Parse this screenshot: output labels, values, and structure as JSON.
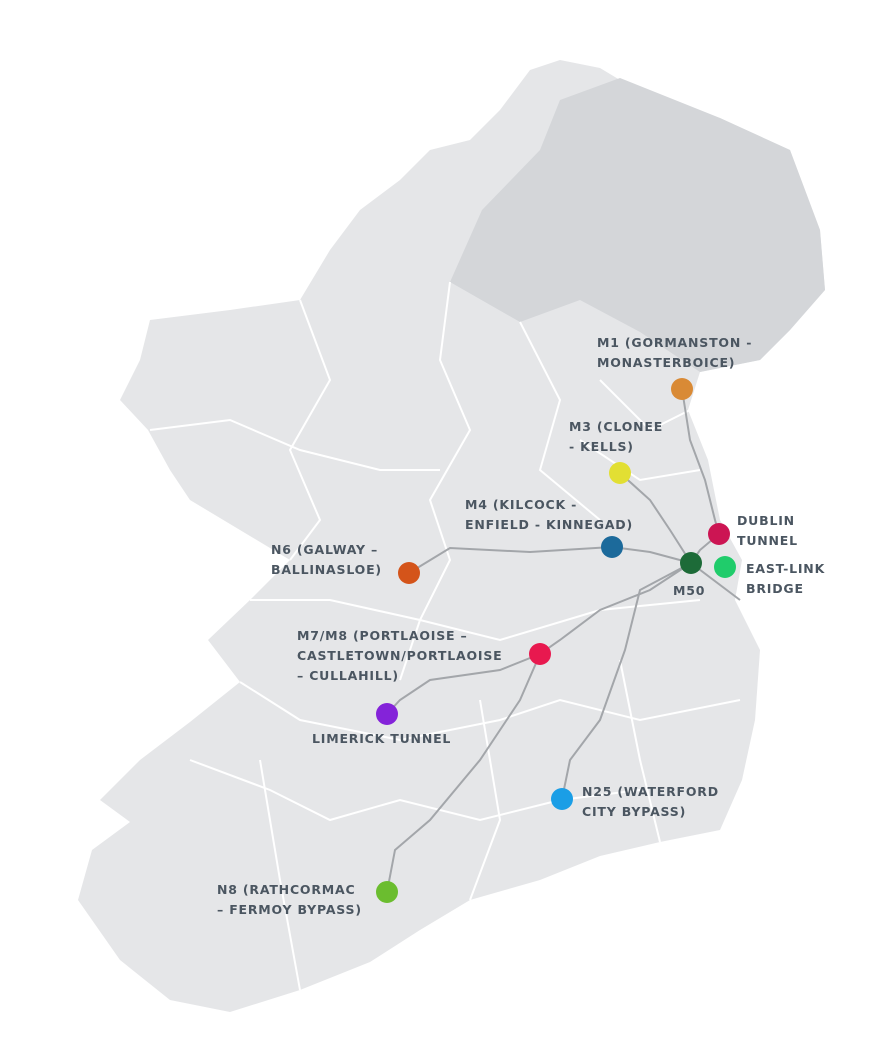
{
  "map": {
    "land_color": "#e5e6e8",
    "northern_ireland_color": "#d4d6d9",
    "border_color": "#ffffff",
    "road_color": "#a3a6aa"
  },
  "toll_points": [
    {
      "id": "m1",
      "lines": [
        "M1 (GORMANSTON -",
        "MONASTERBOICE)"
      ],
      "color": "#d98a35"
    },
    {
      "id": "m3",
      "lines": [
        "M3 (CLONEE",
        "- KELLS)"
      ],
      "color": "#e2df33"
    },
    {
      "id": "m4",
      "lines": [
        "M4 (KILCOCK -",
        "ENFIELD - KINNEGAD)"
      ],
      "color": "#1c6a9b"
    },
    {
      "id": "dublin-tunnel",
      "lines": [
        "DUBLIN",
        "TUNNEL"
      ],
      "color": "#cc1553"
    },
    {
      "id": "m50",
      "lines": [
        "M50"
      ],
      "color": "#1d6b38"
    },
    {
      "id": "east-link",
      "lines": [
        "EAST-LINK",
        "BRIDGE"
      ],
      "color": "#20cc6b"
    },
    {
      "id": "n6",
      "lines": [
        "N6 (GALWAY –",
        "BALLINASLOE)"
      ],
      "color": "#d4541a"
    },
    {
      "id": "m7-m8",
      "lines": [
        "M7/M8 (PORTLAOISE –",
        "CASTLETOWN/PORTLAOISE",
        "– CULLAHILL)"
      ],
      "color": "#e8194f"
    },
    {
      "id": "limerick-tunnel",
      "lines": [
        "LIMERICK TUNNEL"
      ],
      "color": "#8423d9"
    },
    {
      "id": "n25",
      "lines": [
        "N25 (WATERFORD",
        "CITY BYPASS)"
      ],
      "color": "#1a9ee6"
    },
    {
      "id": "n8",
      "lines": [
        "N8 (RATHCORMAC",
        "– FERMOY BYPASS)"
      ],
      "color": "#6bbd2f"
    }
  ]
}
